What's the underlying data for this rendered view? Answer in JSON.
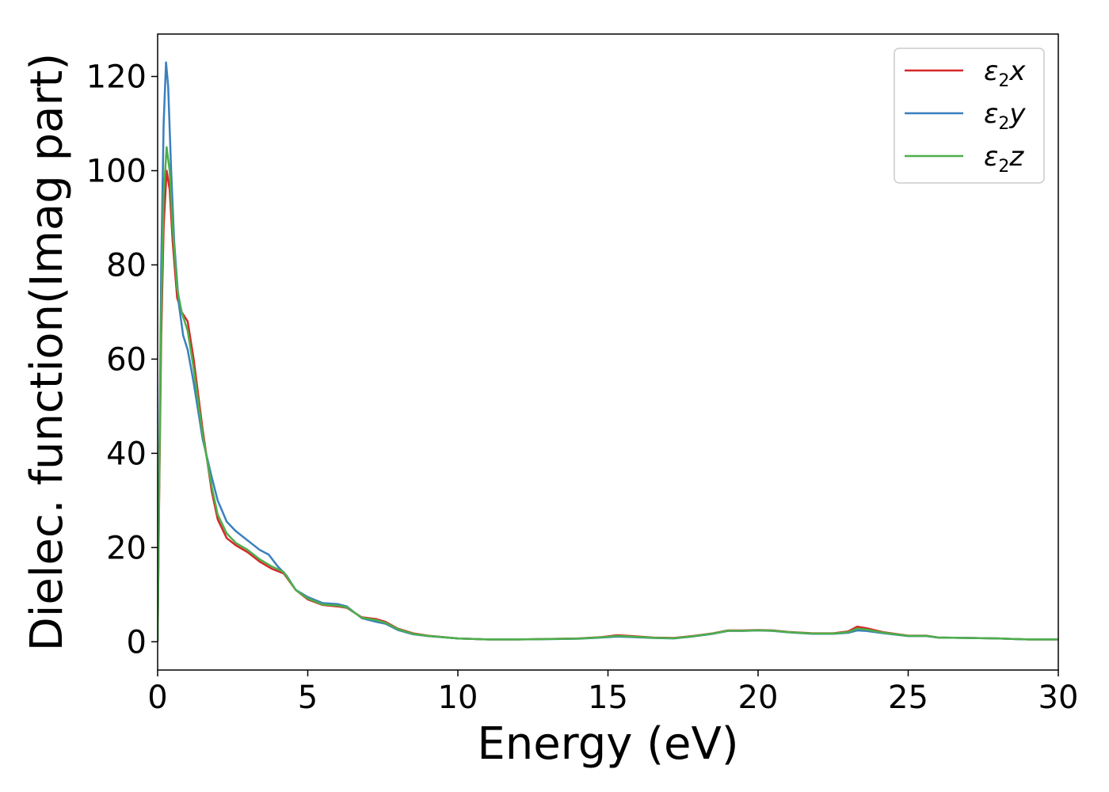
{
  "chart_data": {
    "type": "line",
    "xlabel": "Energy (eV)",
    "ylabel": "Dielec. function(Imag part)",
    "xlim": [
      0,
      30
    ],
    "ylim": [
      -6,
      129
    ],
    "xticks": [
      0,
      5,
      10,
      15,
      20,
      25,
      30
    ],
    "yticks": [
      0,
      20,
      40,
      60,
      80,
      100,
      120
    ],
    "grid": false,
    "legend_position": "top-right",
    "series": [
      {
        "name_base": "ε",
        "name_sub": "2",
        "name_suffix": "x",
        "color": "#d62728",
        "points": [
          [
            0,
            0
          ],
          [
            0.05,
            30
          ],
          [
            0.12,
            65
          ],
          [
            0.2,
            88
          ],
          [
            0.3,
            100
          ],
          [
            0.4,
            96
          ],
          [
            0.5,
            85
          ],
          [
            0.65,
            73
          ],
          [
            0.8,
            70
          ],
          [
            1.0,
            68
          ],
          [
            1.2,
            60
          ],
          [
            1.5,
            45
          ],
          [
            1.8,
            32
          ],
          [
            2.0,
            26
          ],
          [
            2.3,
            22
          ],
          [
            2.6,
            20.5
          ],
          [
            3.0,
            19
          ],
          [
            3.4,
            17
          ],
          [
            3.8,
            15.5
          ],
          [
            4.2,
            14.5
          ],
          [
            4.6,
            11
          ],
          [
            5.0,
            9
          ],
          [
            5.5,
            7.8
          ],
          [
            6.0,
            7.5
          ],
          [
            6.3,
            7.2
          ],
          [
            6.8,
            5.2
          ],
          [
            7.3,
            4.8
          ],
          [
            7.6,
            4.2
          ],
          [
            8.0,
            2.8
          ],
          [
            8.5,
            1.8
          ],
          [
            9.0,
            1.3
          ],
          [
            10,
            0.7
          ],
          [
            11,
            0.5
          ],
          [
            12,
            0.5
          ],
          [
            13,
            0.6
          ],
          [
            14,
            0.7
          ],
          [
            14.8,
            1.0
          ],
          [
            15.3,
            1.4
          ],
          [
            15.8,
            1.2
          ],
          [
            16.5,
            0.9
          ],
          [
            17.2,
            0.8
          ],
          [
            17.8,
            1.2
          ],
          [
            18.5,
            1.8
          ],
          [
            19,
            2.4
          ],
          [
            19.5,
            2.4
          ],
          [
            20,
            2.5
          ],
          [
            20.5,
            2.4
          ],
          [
            21,
            2.1
          ],
          [
            21.8,
            1.8
          ],
          [
            22.5,
            1.8
          ],
          [
            23,
            2.2
          ],
          [
            23.3,
            3.2
          ],
          [
            23.6,
            2.9
          ],
          [
            24.2,
            2.0
          ],
          [
            25,
            1.3
          ],
          [
            25.6,
            1.3
          ],
          [
            26,
            0.9
          ],
          [
            27,
            0.8
          ],
          [
            28,
            0.7
          ],
          [
            29,
            0.5
          ],
          [
            30,
            0.5
          ]
        ]
      },
      {
        "name_base": "ε",
        "name_sub": "2",
        "name_suffix": "y",
        "color": "#3a7fbd",
        "points": [
          [
            0,
            0
          ],
          [
            0.05,
            35
          ],
          [
            0.12,
            80
          ],
          [
            0.2,
            110
          ],
          [
            0.28,
            123
          ],
          [
            0.35,
            118
          ],
          [
            0.45,
            100
          ],
          [
            0.55,
            85
          ],
          [
            0.7,
            72
          ],
          [
            0.85,
            65
          ],
          [
            1.0,
            62
          ],
          [
            1.2,
            55
          ],
          [
            1.5,
            43
          ],
          [
            1.8,
            35
          ],
          [
            2.0,
            30
          ],
          [
            2.3,
            25.5
          ],
          [
            2.6,
            23.5
          ],
          [
            3.0,
            21.5
          ],
          [
            3.4,
            19.5
          ],
          [
            3.7,
            18.5
          ],
          [
            4.0,
            16
          ],
          [
            4.3,
            14
          ],
          [
            4.6,
            11
          ],
          [
            5.0,
            9.5
          ],
          [
            5.5,
            8.2
          ],
          [
            6.0,
            8.0
          ],
          [
            6.3,
            7.5
          ],
          [
            6.8,
            5.0
          ],
          [
            7.3,
            4.2
          ],
          [
            7.6,
            3.8
          ],
          [
            8.0,
            2.5
          ],
          [
            8.5,
            1.6
          ],
          [
            9.0,
            1.2
          ],
          [
            10,
            0.7
          ],
          [
            11,
            0.5
          ],
          [
            12,
            0.5
          ],
          [
            13,
            0.55
          ],
          [
            14,
            0.65
          ],
          [
            14.8,
            0.9
          ],
          [
            15.3,
            1.1
          ],
          [
            15.8,
            1.0
          ],
          [
            16.5,
            0.8
          ],
          [
            17.2,
            0.7
          ],
          [
            17.8,
            1.1
          ],
          [
            18.5,
            1.7
          ],
          [
            19,
            2.3
          ],
          [
            19.5,
            2.3
          ],
          [
            20,
            2.4
          ],
          [
            20.5,
            2.3
          ],
          [
            21,
            2.0
          ],
          [
            21.8,
            1.7
          ],
          [
            22.5,
            1.7
          ],
          [
            23,
            1.9
          ],
          [
            23.3,
            2.4
          ],
          [
            23.6,
            2.3
          ],
          [
            24.2,
            1.8
          ],
          [
            25,
            1.2
          ],
          [
            25.6,
            1.2
          ],
          [
            26,
            0.9
          ],
          [
            27,
            0.8
          ],
          [
            28,
            0.7
          ],
          [
            29,
            0.5
          ],
          [
            30,
            0.5
          ]
        ]
      },
      {
        "name_base": "ε",
        "name_sub": "2",
        "name_suffix": "z",
        "color": "#4daf4a",
        "points": [
          [
            0,
            0
          ],
          [
            0.05,
            32
          ],
          [
            0.12,
            70
          ],
          [
            0.2,
            95
          ],
          [
            0.3,
            105
          ],
          [
            0.4,
            100
          ],
          [
            0.5,
            88
          ],
          [
            0.65,
            75
          ],
          [
            0.8,
            70
          ],
          [
            1.0,
            66
          ],
          [
            1.2,
            58
          ],
          [
            1.5,
            44
          ],
          [
            1.8,
            33
          ],
          [
            2.0,
            27
          ],
          [
            2.3,
            23
          ],
          [
            2.6,
            21
          ],
          [
            3.0,
            19.5
          ],
          [
            3.4,
            17.5
          ],
          [
            3.8,
            16
          ],
          [
            4.2,
            14.8
          ],
          [
            4.6,
            11
          ],
          [
            5.0,
            9.2
          ],
          [
            5.5,
            7.9
          ],
          [
            6.0,
            7.7
          ],
          [
            6.3,
            7.3
          ],
          [
            6.8,
            5.1
          ],
          [
            7.3,
            4.6
          ],
          [
            7.6,
            4.0
          ],
          [
            8.0,
            2.7
          ],
          [
            8.5,
            1.7
          ],
          [
            9.0,
            1.25
          ],
          [
            10,
            0.7
          ],
          [
            11,
            0.5
          ],
          [
            12,
            0.5
          ],
          [
            13,
            0.58
          ],
          [
            14,
            0.68
          ],
          [
            14.8,
            0.95
          ],
          [
            15.3,
            1.25
          ],
          [
            15.8,
            1.1
          ],
          [
            16.5,
            0.85
          ],
          [
            17.2,
            0.75
          ],
          [
            17.8,
            1.15
          ],
          [
            18.5,
            1.75
          ],
          [
            19,
            2.35
          ],
          [
            19.5,
            2.35
          ],
          [
            20,
            2.45
          ],
          [
            20.5,
            2.35
          ],
          [
            21,
            2.05
          ],
          [
            21.8,
            1.75
          ],
          [
            22.5,
            1.75
          ],
          [
            23,
            2.05
          ],
          [
            23.3,
            2.8
          ],
          [
            23.6,
            2.6
          ],
          [
            24.2,
            1.9
          ],
          [
            25,
            1.25
          ],
          [
            25.6,
            1.25
          ],
          [
            26,
            0.9
          ],
          [
            27,
            0.8
          ],
          [
            28,
            0.7
          ],
          [
            29,
            0.5
          ],
          [
            30,
            0.5
          ]
        ]
      }
    ]
  }
}
